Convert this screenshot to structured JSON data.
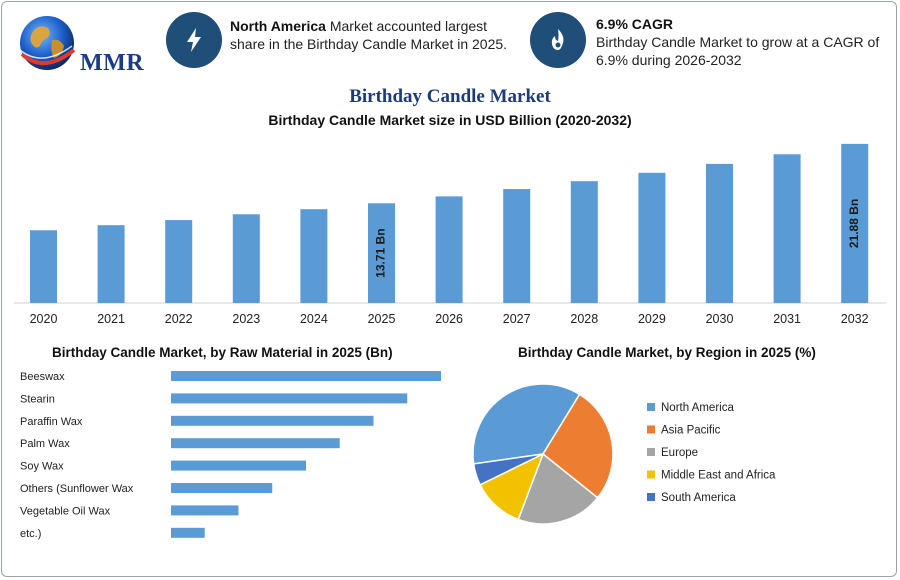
{
  "header": {
    "logo_text": "MMR",
    "info1_bold": "North America",
    "info1_rest": " Market accounted largest share in the Birthday Candle Market in 2025.",
    "info2_bold": "6.9% CAGR",
    "info2_rest": "Birthday Candle Market to grow at a CAGR of 6.9% during 2026-2032"
  },
  "title": "Birthday Candle Market",
  "colors": {
    "bar": "#5b9bd5",
    "icon_circle": "#1f4e79",
    "title": "#1f3a7a"
  },
  "chart_data": [
    {
      "type": "bar",
      "title": "Birthday Candle Market size in USD Billion (2020-2032)",
      "categories": [
        "2020",
        "2021",
        "2022",
        "2023",
        "2024",
        "2025",
        "2026",
        "2027",
        "2028",
        "2029",
        "2030",
        "2031",
        "2032"
      ],
      "values": [
        10.0,
        10.7,
        11.4,
        12.2,
        12.9,
        13.71,
        14.66,
        15.67,
        16.75,
        17.9,
        19.13,
        20.45,
        21.88
      ],
      "data_labels": {
        "2025": "13.71 Bn",
        "2032": "21.88 Bn"
      },
      "ylim": [
        0,
        22
      ],
      "grid": false
    },
    {
      "type": "bar",
      "orientation": "horizontal",
      "title": "Birthday Candle Market, by Raw Material in 2025 (Bn)",
      "categories": [
        "Beeswax",
        "Stearin",
        "Paraffin Wax",
        "Palm Wax",
        "Soy Wax",
        "Others (Sunflower Wax",
        "Vegetable Oil Wax",
        "etc.)"
      ],
      "values": [
        8.0,
        7.0,
        6.0,
        5.0,
        4.0,
        3.0,
        2.0,
        1.0
      ]
    },
    {
      "type": "pie",
      "title": "Birthday Candle Market, by Region in 2025 (%)",
      "legend_position": "right",
      "series": [
        {
          "name": "North America",
          "value": 36,
          "color": "#5b9bd5"
        },
        {
          "name": "Asia Pacific",
          "value": 27,
          "color": "#ed7d31"
        },
        {
          "name": "Europe",
          "value": 20,
          "color": "#a5a5a5"
        },
        {
          "name": "Middle East and Africa",
          "value": 12,
          "color": "#f2c200"
        },
        {
          "name": "South America",
          "value": 5,
          "color": "#4472c4"
        }
      ]
    }
  ]
}
